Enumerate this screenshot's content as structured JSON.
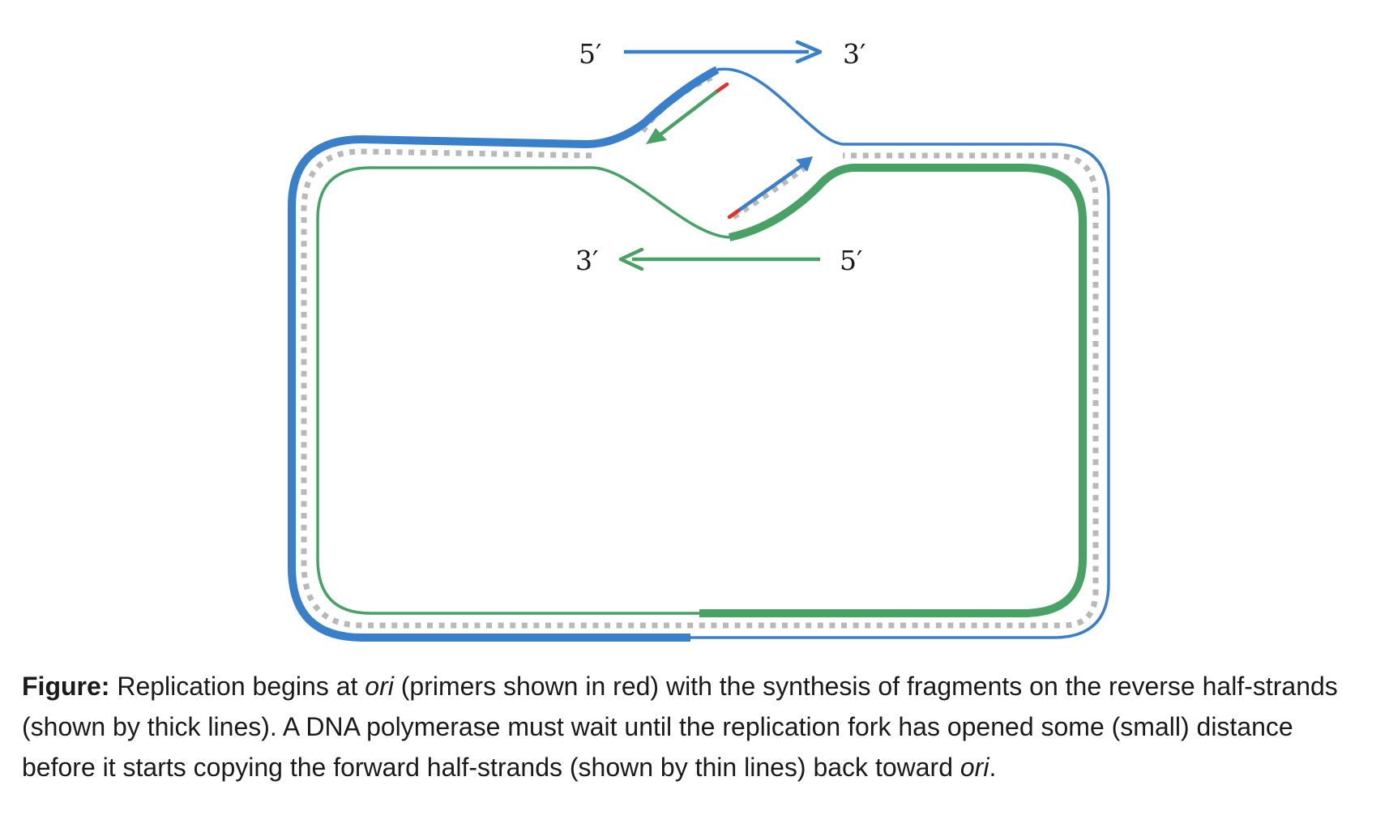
{
  "diagram": {
    "top_left_label": "5′",
    "top_right_label": "3′",
    "bottom_left_label": "3′",
    "bottom_right_label": "5′",
    "colors": {
      "blue_strand": "#3a7fc9",
      "green_strand": "#48a265",
      "rungs": "#b9b9b9",
      "primer": "#e0312c"
    }
  },
  "caption": {
    "label": "Figure:",
    "t1": " Replication begins at ",
    "ori1": "ori",
    "t2": " (primers shown in red) with the synthesis of fragments on the reverse half-strands (shown by thick lines). A DNA polymerase must wait until the replication fork has opened some (small) distance before it starts copying the forward half-strands (shown by thin lines) back toward ",
    "ori2": "ori",
    "t3": "."
  }
}
